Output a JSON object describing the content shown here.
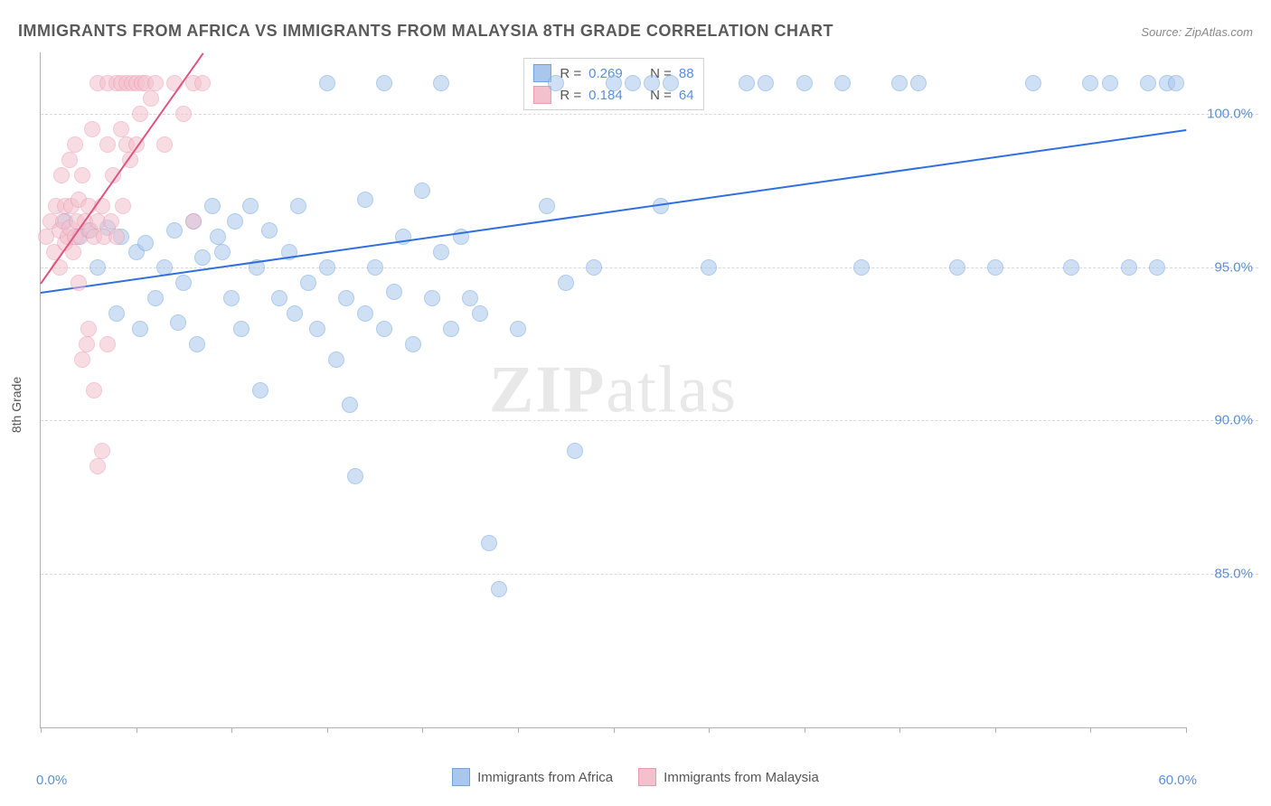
{
  "title": "IMMIGRANTS FROM AFRICA VS IMMIGRANTS FROM MALAYSIA 8TH GRADE CORRELATION CHART",
  "source_label": "Source:",
  "source_value": "ZipAtlas.com",
  "watermark": "ZIPatlas",
  "yaxis_label": "8th Grade",
  "chart": {
    "type": "scatter",
    "xlim": [
      0,
      60
    ],
    "ylim": [
      80,
      102
    ],
    "xticks": [
      0,
      5,
      10,
      15,
      20,
      25,
      30,
      35,
      40,
      45,
      50,
      55,
      60
    ],
    "xlim_labels": {
      "min": "0.0%",
      "max": "60.0%"
    },
    "ygrid": [
      {
        "value": 85,
        "label": "85.0%"
      },
      {
        "value": 90,
        "label": "90.0%"
      },
      {
        "value": 95,
        "label": "95.0%"
      },
      {
        "value": 100,
        "label": "100.0%"
      }
    ],
    "background_color": "#ffffff",
    "grid_color": "#d9d9d9",
    "axis_color": "#b0b0b0",
    "label_color": "#5b8fd6",
    "marker_radius": 9,
    "marker_opacity": 0.55,
    "series": [
      {
        "name": "Immigrants from Africa",
        "color_fill": "#a9c7ec",
        "color_stroke": "#6ea3e0",
        "trend": {
          "x1": 0,
          "y1": 94.2,
          "x2": 60,
          "y2": 99.5,
          "color": "#2f6fe0",
          "width": 2
        },
        "R": "0.269",
        "N": "88",
        "points": [
          [
            1.3,
            96.5
          ],
          [
            2.0,
            96.0
          ],
          [
            2.5,
            96.2
          ],
          [
            3.0,
            95.0
          ],
          [
            3.5,
            96.3
          ],
          [
            4.0,
            93.5
          ],
          [
            4.2,
            96.0
          ],
          [
            5.0,
            95.5
          ],
          [
            5.2,
            93.0
          ],
          [
            5.5,
            95.8
          ],
          [
            6.0,
            94.0
          ],
          [
            6.5,
            95.0
          ],
          [
            7.0,
            96.2
          ],
          [
            7.2,
            93.2
          ],
          [
            7.5,
            94.5
          ],
          [
            8.0,
            96.5
          ],
          [
            8.2,
            92.5
          ],
          [
            8.5,
            95.3
          ],
          [
            9.0,
            97.0
          ],
          [
            9.3,
            96.0
          ],
          [
            9.5,
            95.5
          ],
          [
            10.0,
            94.0
          ],
          [
            10.2,
            96.5
          ],
          [
            10.5,
            93.0
          ],
          [
            11.0,
            97.0
          ],
          [
            11.3,
            95.0
          ],
          [
            11.5,
            91.0
          ],
          [
            12.0,
            96.2
          ],
          [
            12.5,
            94.0
          ],
          [
            13.0,
            95.5
          ],
          [
            13.3,
            93.5
          ],
          [
            13.5,
            97.0
          ],
          [
            14.0,
            94.5
          ],
          [
            14.5,
            93.0
          ],
          [
            15.0,
            101.0
          ],
          [
            15.0,
            95.0
          ],
          [
            15.5,
            92.0
          ],
          [
            16.0,
            94.0
          ],
          [
            16.2,
            90.5
          ],
          [
            16.5,
            88.2
          ],
          [
            17.0,
            97.2
          ],
          [
            17.0,
            93.5
          ],
          [
            17.5,
            95.0
          ],
          [
            18.0,
            101.0
          ],
          [
            18.0,
            93.0
          ],
          [
            18.5,
            94.2
          ],
          [
            19.0,
            96.0
          ],
          [
            19.5,
            92.5
          ],
          [
            20.0,
            97.5
          ],
          [
            20.5,
            94.0
          ],
          [
            21.0,
            101.0
          ],
          [
            21.0,
            95.5
          ],
          [
            21.5,
            93.0
          ],
          [
            22.0,
            96.0
          ],
          [
            22.5,
            94.0
          ],
          [
            23.0,
            93.5
          ],
          [
            23.5,
            86.0
          ],
          [
            24.0,
            84.5
          ],
          [
            25.0,
            93.0
          ],
          [
            26.5,
            97.0
          ],
          [
            27.0,
            101.0
          ],
          [
            27.5,
            94.5
          ],
          [
            28.0,
            89.0
          ],
          [
            29.0,
            95.0
          ],
          [
            30.0,
            101.0
          ],
          [
            31.0,
            101.0
          ],
          [
            32.0,
            101.0
          ],
          [
            32.5,
            97.0
          ],
          [
            33.0,
            101.0
          ],
          [
            35.0,
            95.0
          ],
          [
            37.0,
            101.0
          ],
          [
            38.0,
            101.0
          ],
          [
            40.0,
            101.0
          ],
          [
            42.0,
            101.0
          ],
          [
            43.0,
            95.0
          ],
          [
            45.0,
            101.0
          ],
          [
            46.0,
            101.0
          ],
          [
            48.0,
            95.0
          ],
          [
            50.0,
            95.0
          ],
          [
            52.0,
            101.0
          ],
          [
            54.0,
            95.0
          ],
          [
            55.0,
            101.0
          ],
          [
            56.0,
            101.0
          ],
          [
            57.0,
            95.0
          ],
          [
            58.0,
            101.0
          ],
          [
            58.5,
            95.0
          ],
          [
            59.0,
            101.0
          ],
          [
            59.5,
            101.0
          ]
        ]
      },
      {
        "name": "Immigrants from Malaysia",
        "color_fill": "#f3c0cd",
        "color_stroke": "#ec9ab0",
        "trend": {
          "x1": 0,
          "y1": 94.5,
          "x2": 8.5,
          "y2": 102.0,
          "color": "#e05580",
          "width": 2
        },
        "R": "0.184",
        "N": "64",
        "points": [
          [
            0.3,
            96.0
          ],
          [
            0.5,
            96.5
          ],
          [
            0.7,
            95.5
          ],
          [
            0.8,
            97.0
          ],
          [
            1.0,
            96.2
          ],
          [
            1.0,
            95.0
          ],
          [
            1.1,
            98.0
          ],
          [
            1.2,
            96.5
          ],
          [
            1.3,
            97.0
          ],
          [
            1.3,
            95.8
          ],
          [
            1.4,
            96.0
          ],
          [
            1.5,
            98.5
          ],
          [
            1.5,
            96.3
          ],
          [
            1.6,
            97.0
          ],
          [
            1.7,
            95.5
          ],
          [
            1.8,
            96.0
          ],
          [
            1.8,
            99.0
          ],
          [
            1.9,
            96.5
          ],
          [
            2.0,
            94.5
          ],
          [
            2.0,
            97.2
          ],
          [
            2.1,
            96.0
          ],
          [
            2.2,
            92.0
          ],
          [
            2.2,
            98.0
          ],
          [
            2.3,
            96.5
          ],
          [
            2.4,
            92.5
          ],
          [
            2.5,
            97.0
          ],
          [
            2.5,
            93.0
          ],
          [
            2.6,
            96.2
          ],
          [
            2.7,
            99.5
          ],
          [
            2.8,
            96.0
          ],
          [
            2.8,
            91.0
          ],
          [
            3.0,
            101.0
          ],
          [
            3.0,
            96.5
          ],
          [
            3.0,
            88.5
          ],
          [
            3.2,
            97.0
          ],
          [
            3.2,
            89.0
          ],
          [
            3.3,
            96.0
          ],
          [
            3.5,
            99.0
          ],
          [
            3.5,
            101.0
          ],
          [
            3.5,
            92.5
          ],
          [
            3.7,
            96.5
          ],
          [
            3.8,
            98.0
          ],
          [
            4.0,
            101.0
          ],
          [
            4.0,
            96.0
          ],
          [
            4.2,
            99.5
          ],
          [
            4.2,
            101.0
          ],
          [
            4.3,
            97.0
          ],
          [
            4.5,
            101.0
          ],
          [
            4.5,
            99.0
          ],
          [
            4.7,
            98.5
          ],
          [
            4.8,
            101.0
          ],
          [
            5.0,
            101.0
          ],
          [
            5.0,
            99.0
          ],
          [
            5.2,
            100.0
          ],
          [
            5.3,
            101.0
          ],
          [
            5.5,
            101.0
          ],
          [
            5.8,
            100.5
          ],
          [
            6.0,
            101.0
          ],
          [
            6.5,
            99.0
          ],
          [
            7.0,
            101.0
          ],
          [
            7.5,
            100.0
          ],
          [
            8.0,
            96.5
          ],
          [
            8.0,
            101.0
          ],
          [
            8.5,
            101.0
          ]
        ]
      }
    ]
  },
  "legend_top": {
    "r_label": "R =",
    "n_label": "N ="
  },
  "legend_bottom_labels": [
    "Immigrants from Africa",
    "Immigrants from Malaysia"
  ]
}
